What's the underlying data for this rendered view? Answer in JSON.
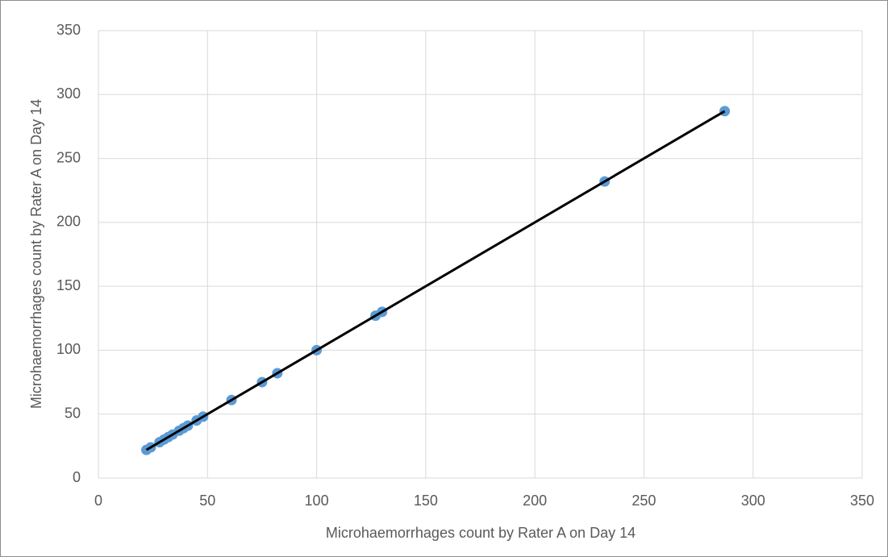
{
  "chart_data": {
    "type": "scatter",
    "x_label": "Microhaemorrhages count by Rater A on Day 14",
    "y_label": "Microhaemorrhages count by Rater A on Day 14",
    "series": [
      {
        "color": "#5b9bd5",
        "x": [
          22,
          24,
          28,
          30,
          32,
          34,
          37,
          39,
          41,
          45,
          48,
          61,
          75,
          82,
          100,
          127,
          130,
          232,
          287
        ],
        "values": [
          22,
          24,
          28,
          30,
          32,
          34,
          37,
          39,
          41,
          45,
          48,
          61,
          75,
          82,
          100,
          127,
          130,
          232,
          287
        ]
      }
    ],
    "trendline": {
      "color": "#000000",
      "x": [
        22,
        287
      ],
      "values": [
        22,
        287
      ]
    },
    "xlim": [
      0,
      350
    ],
    "xticks": [
      0,
      50,
      100,
      150,
      200,
      250,
      300,
      350
    ],
    "ylim": [
      0,
      350
    ],
    "yticks": [
      0,
      50,
      100,
      150,
      200,
      250,
      300,
      350
    ],
    "grid": true
  }
}
